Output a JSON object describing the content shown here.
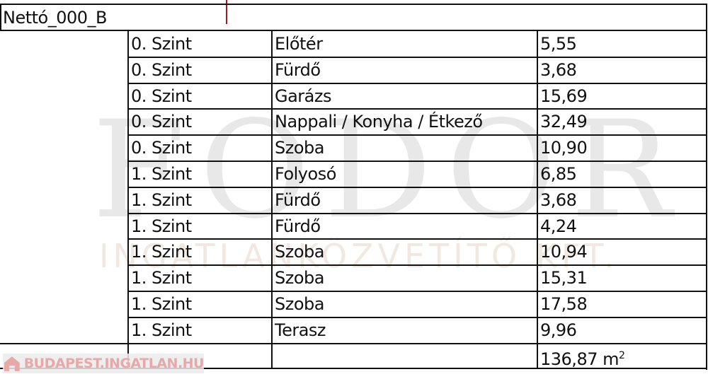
{
  "title": "Nettó_000_B",
  "rows": [
    {
      "level": "0. Szint",
      "room": "Előtér",
      "area": "5,55"
    },
    {
      "level": "0. Szint",
      "room": "Fürdő",
      "area": "3,68"
    },
    {
      "level": "0. Szint",
      "room": "Garázs",
      "area": "15,69"
    },
    {
      "level": "0. Szint",
      "room": "Nappali / Konyha / Étkező",
      "area": "32,49"
    },
    {
      "level": "0. Szint",
      "room": "Szoba",
      "area": "10,90"
    },
    {
      "level": "1. Szint",
      "room": "Folyosó",
      "area": "6,85"
    },
    {
      "level": "1. Szint",
      "room": "Fürdő",
      "area": "3,68"
    },
    {
      "level": "1. Szint",
      "room": "Fürdő",
      "area": "4,24"
    },
    {
      "level": "1. Szint",
      "room": "Szoba",
      "area": "10,94"
    },
    {
      "level": "1. Szint",
      "room": "Szoba",
      "area": "15,31"
    },
    {
      "level": "1. Szint",
      "room": "Szoba",
      "area": "17,58"
    },
    {
      "level": "1. Szint",
      "room": "Terasz",
      "area": "9,96"
    }
  ],
  "total": {
    "value": "136,87 m",
    "unit_sup": "2"
  },
  "watermark": {
    "logo": "FODOR",
    "tagline": "INGATLANKÖZVETÍTŐ KFT."
  },
  "badge": {
    "text": "BUDAPEST.INGATLAN.HU",
    "icon": "house-icon"
  },
  "colors": {
    "border": "#111111",
    "red_marker": "#a01a2a",
    "badge_text": "#e8a8a8"
  }
}
